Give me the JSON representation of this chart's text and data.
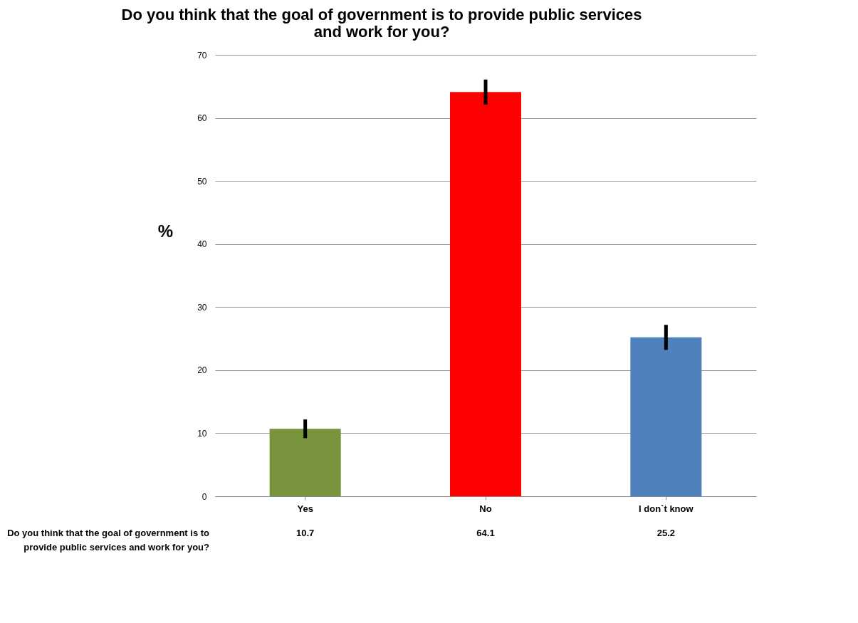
{
  "chart_data": {
    "type": "bar",
    "title": [
      "Do you think that the goal of government is to provide public services",
      "and work for you?"
    ],
    "ylabel": "%",
    "categories": [
      "Yes",
      "No",
      "I don`t know"
    ],
    "series": [
      {
        "name": "Do you think that the goal of government is to provide public services and work for you?",
        "values": [
          10.7,
          64.1,
          25.2
        ],
        "errors": [
          1.2,
          1.7,
          1.7
        ]
      }
    ],
    "colors": [
      "#77933c",
      "#ff0000",
      "#4f81bd"
    ],
    "ylim": [
      0,
      70
    ],
    "yticks": [
      0,
      10,
      20,
      30,
      40,
      50,
      60,
      70
    ],
    "grid": "y",
    "data_labels": true
  }
}
